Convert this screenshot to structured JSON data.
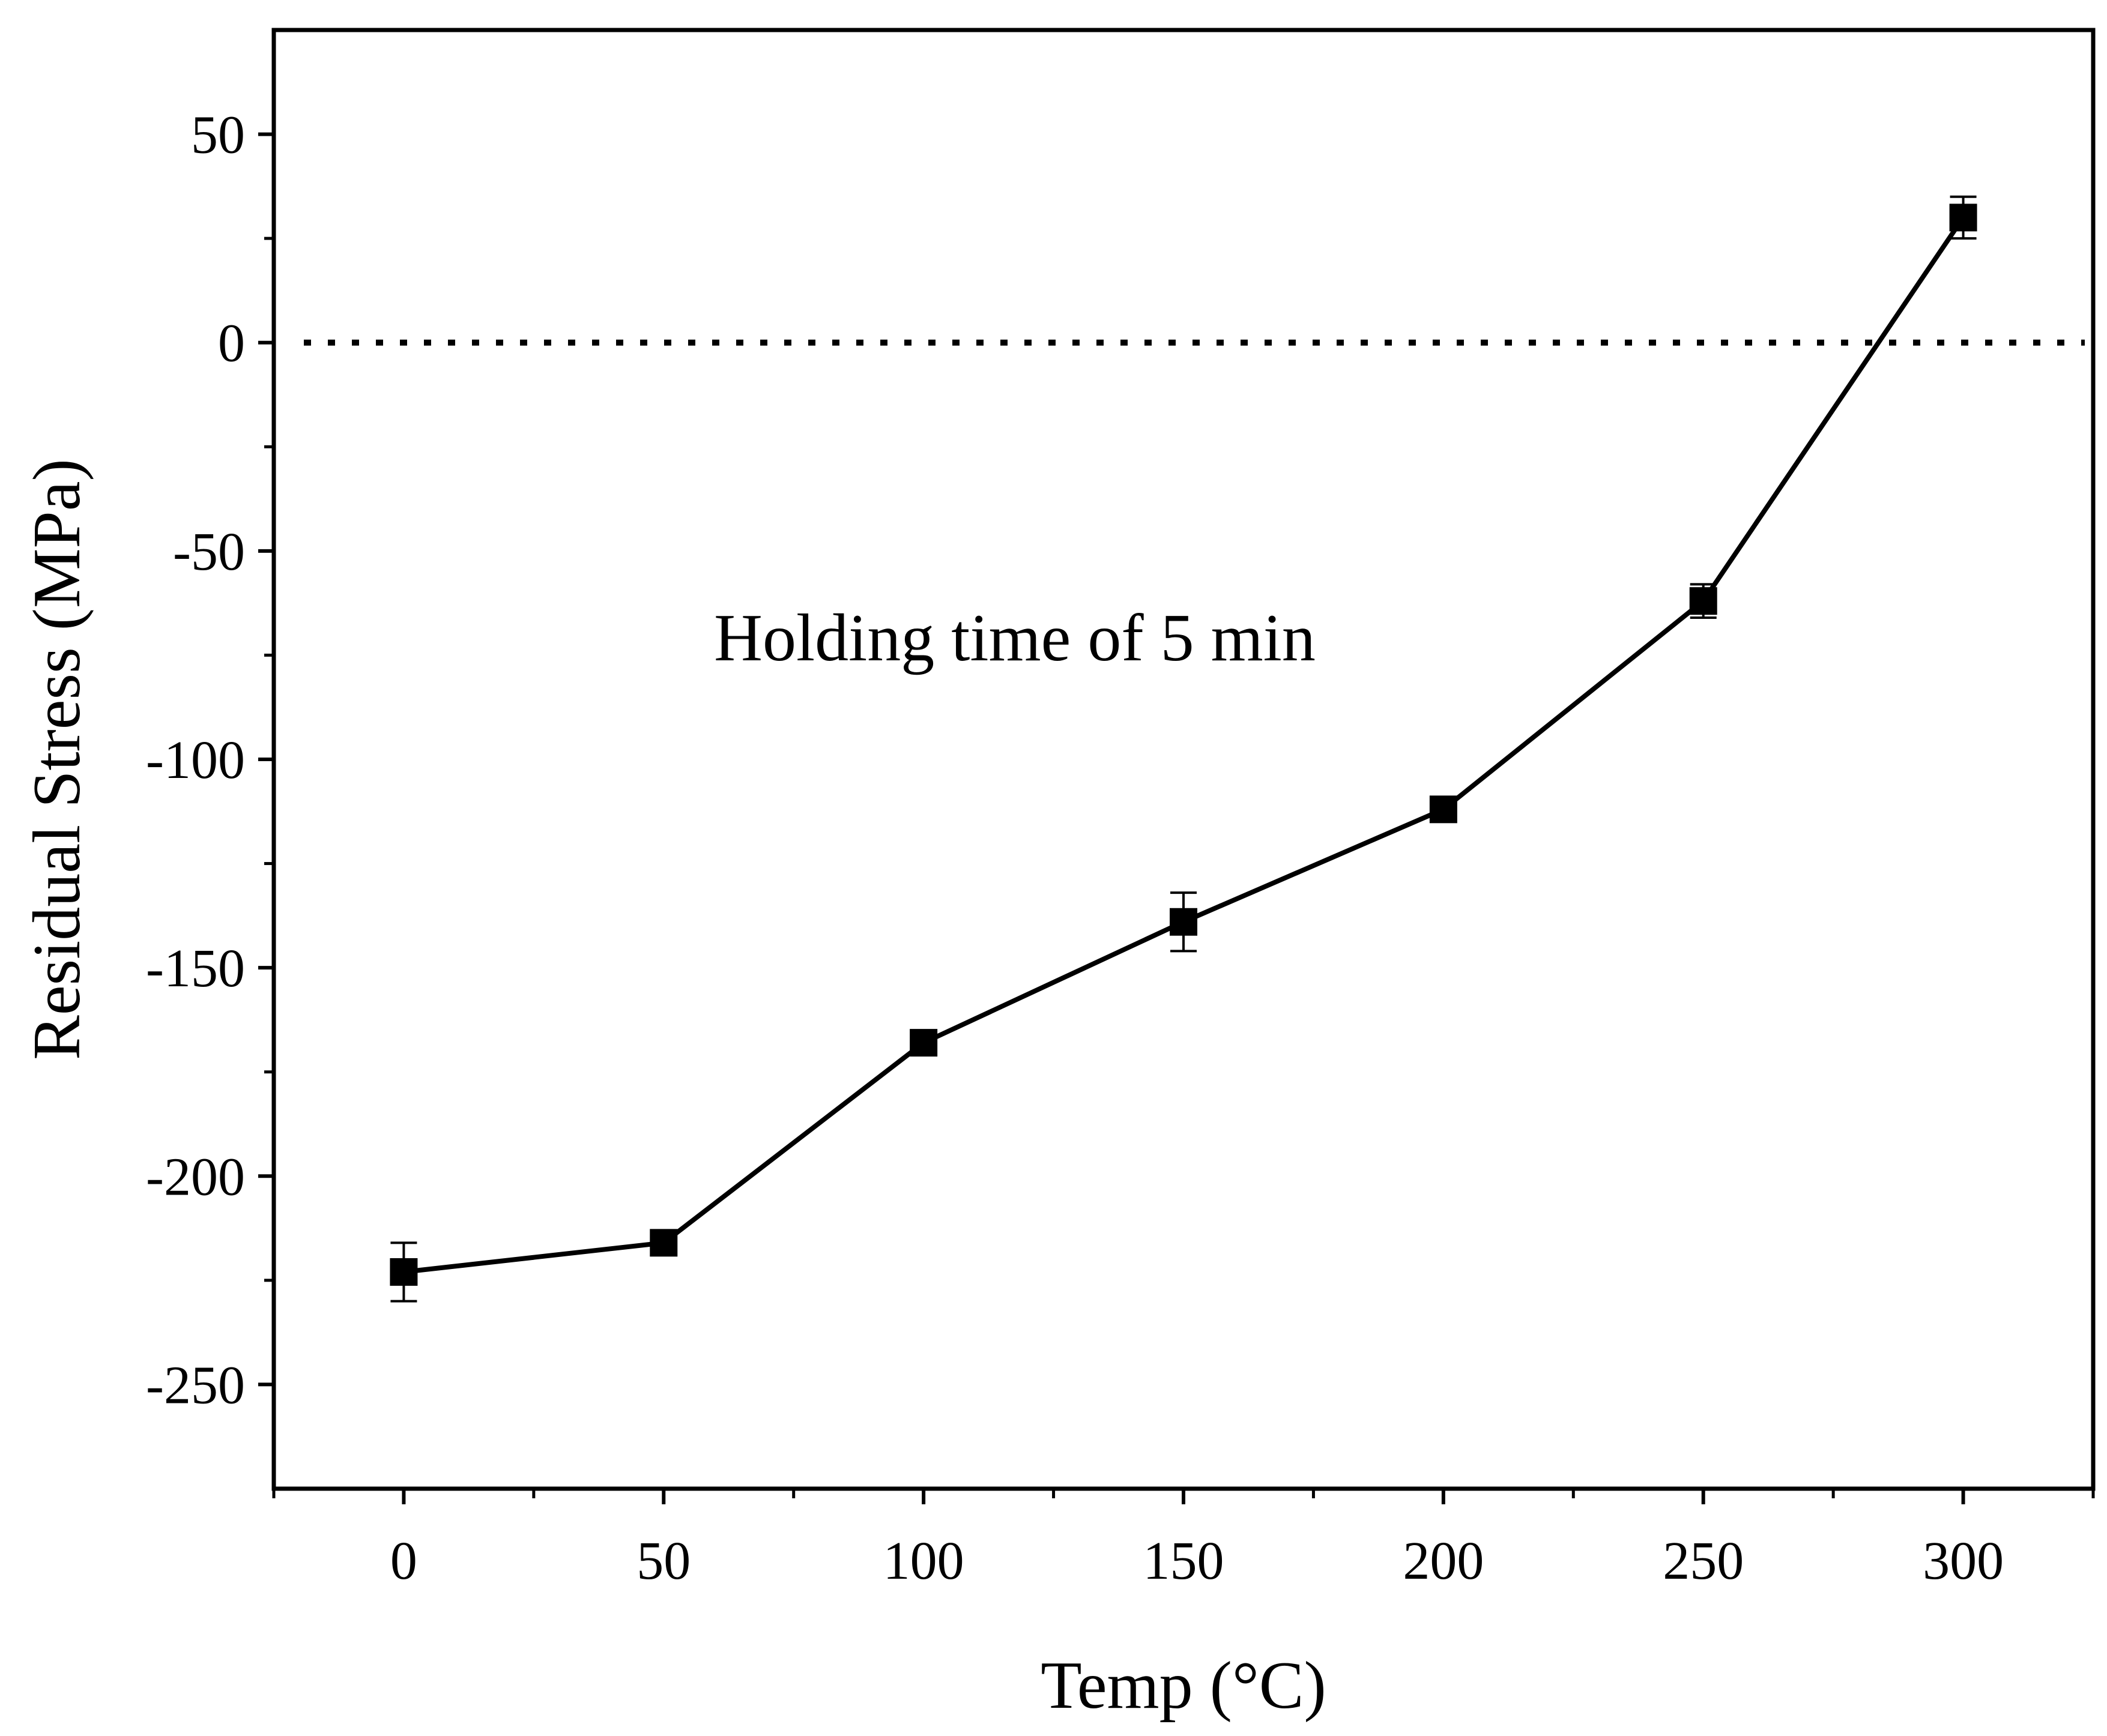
{
  "chart_data": {
    "type": "line",
    "title": "",
    "xlabel": "Temp (°C)",
    "ylabel": "Residual Stress (MPa)",
    "xlim": [
      -25,
      325
    ],
    "ylim": [
      -275,
      75
    ],
    "x_ticks": [
      0,
      50,
      100,
      150,
      200,
      250,
      300
    ],
    "x_tick_labels": [
      "0",
      "50",
      "100",
      "150",
      "200",
      "250",
      "300"
    ],
    "y_ticks": [
      -250,
      -200,
      -150,
      -100,
      -50,
      0,
      50
    ],
    "y_tick_labels": [
      "-250",
      "-200",
      "-150",
      "-100",
      "-50",
      "0",
      "50"
    ],
    "grid": false,
    "reference_line": {
      "y": 0,
      "style": "dotted"
    },
    "annotation": "Holding time of 5 min",
    "series": [
      {
        "name": "Residual Stress",
        "marker": "square",
        "color": "#000000",
        "x": [
          0,
          50,
          100,
          150,
          200,
          250,
          300
        ],
        "y": [
          -223,
          -216,
          -168,
          -139,
          -112,
          -62,
          30
        ],
        "error": [
          7,
          2,
          2,
          7,
          2,
          4,
          5
        ]
      }
    ]
  }
}
